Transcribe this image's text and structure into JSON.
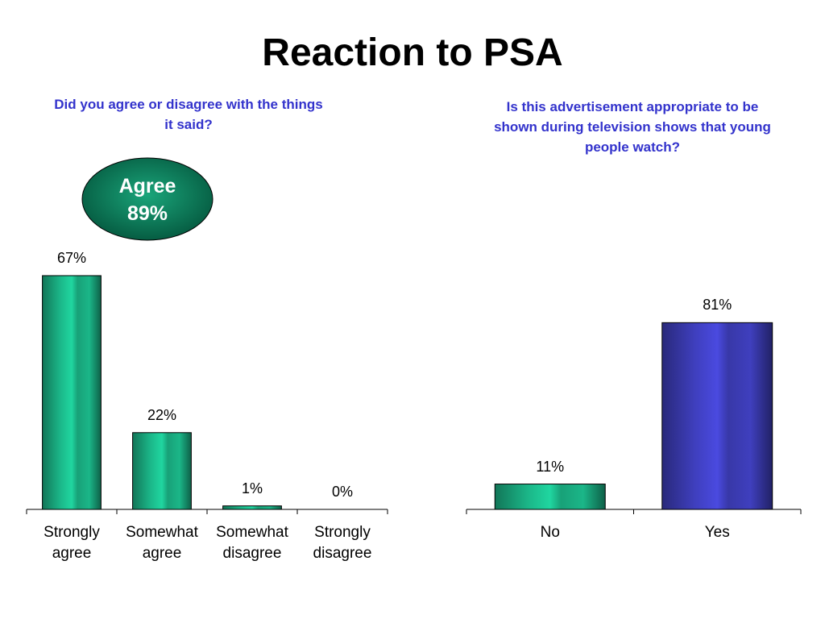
{
  "title": "Reaction to PSA",
  "chart_data": [
    {
      "type": "bar",
      "title": "Did you agree or disagree with the things it said?",
      "categories": [
        "Strongly agree",
        "Somewhat agree",
        "Somewhat disagree",
        "Strongly disagree"
      ],
      "values": [
        67,
        22,
        1,
        0
      ],
      "value_labels": [
        "67%",
        "22%",
        "1%",
        "0%"
      ],
      "colors": [
        "#20d6a0",
        "#20d6a0",
        "#20d6a0",
        "#20d6a0"
      ],
      "ylim": [
        0,
        70
      ],
      "annotation": {
        "text": "Agree",
        "value": 89,
        "label": "89%"
      }
    },
    {
      "type": "bar",
      "title": "Is this advertisement appropriate to be shown during television shows that young people watch?",
      "categories": [
        "No",
        "Yes"
      ],
      "values": [
        11,
        81
      ],
      "value_labels": [
        "11%",
        "81%"
      ],
      "colors": [
        "#20d6a0",
        "#4a4ae0"
      ],
      "ylim": [
        0,
        100
      ]
    }
  ]
}
